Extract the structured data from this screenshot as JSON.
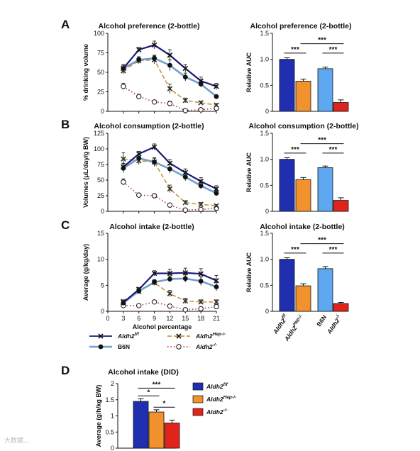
{
  "chart_data": [
    {
      "id": "A-line",
      "panel_letter": "A",
      "type": "line",
      "title": "Alcohol preference (2-bottle)",
      "ylabel": "% drinking volume",
      "xlabel": "",
      "x": [
        3,
        6,
        9,
        12,
        15,
        18,
        21
      ],
      "ylim": [
        0,
        100
      ],
      "yticks": [
        0,
        25,
        50,
        75,
        100
      ],
      "series": [
        {
          "key": "fl",
          "values": [
            55,
            79,
            85,
            72,
            55,
            39,
            32
          ],
          "err": [
            4,
            3,
            5,
            7,
            5,
            5,
            4
          ],
          "color": "#1a1a7a",
          "marker": "x",
          "dash": "none"
        },
        {
          "key": "b6n",
          "values": [
            55,
            66,
            68,
            59,
            44,
            35,
            19
          ],
          "err": [
            5,
            4,
            4,
            7,
            5,
            4,
            2
          ],
          "color": "#6fa0cc",
          "marker": "dot",
          "dash": "none"
        },
        {
          "key": "hep",
          "values": [
            52,
            65,
            66,
            29,
            14,
            11,
            8
          ],
          "err": [
            4,
            4,
            5,
            6,
            3,
            2,
            2
          ],
          "color": "#c89540",
          "marker": "x",
          "dash": "6,3"
        },
        {
          "key": "ko",
          "values": [
            32,
            19,
            12,
            10,
            1,
            2,
            4
          ],
          "err": [
            4,
            3,
            2,
            3,
            1,
            1,
            2
          ],
          "color": "#b23b3b",
          "marker": "circle",
          "dash": "1.5,3"
        }
      ]
    },
    {
      "id": "A-bar",
      "type": "bar",
      "title": "Alcohol preference (2-bottle)",
      "ylabel": "Relative AUC",
      "ylim": [
        0,
        1.5
      ],
      "yticks": [
        0,
        0.5,
        1.0,
        1.5
      ],
      "ytick_labels": [
        "0",
        "0.5",
        "1.0",
        "1.5"
      ],
      "values": [
        1.0,
        0.58,
        0.82,
        0.17
      ],
      "err": [
        0.03,
        0.04,
        0.03,
        0.05
      ],
      "colors": [
        "#1f2fb0",
        "#f2922e",
        "#5da8f0",
        "#e0241c"
      ],
      "brackets": [
        {
          "from": 0,
          "to": 1,
          "label": "***",
          "y": 1.12
        },
        {
          "from": 1,
          "to": 3,
          "label": "***",
          "y": 1.3
        },
        {
          "from": 2,
          "to": 3,
          "label": "***",
          "y": 1.12
        }
      ]
    },
    {
      "id": "B-line",
      "panel_letter": "B",
      "type": "line",
      "title": "Alcohol consumption (2-bottle)",
      "ylabel": "Volumes (μL/day/g BW)",
      "xlabel": "",
      "x": [
        3,
        6,
        9,
        12,
        15,
        18,
        21
      ],
      "ylim": [
        0,
        125
      ],
      "yticks": [
        0,
        25,
        50,
        75,
        100,
        125
      ],
      "series": [
        {
          "key": "fl",
          "values": [
            71,
            92,
            103,
            77,
            62,
            48,
            36
          ],
          "err": [
            6,
            4,
            5,
            6,
            6,
            6,
            5
          ],
          "color": "#1a1a7a",
          "marker": "x",
          "dash": "none"
        },
        {
          "key": "b6n",
          "values": [
            69,
            85,
            79,
            68,
            55,
            41,
            29
          ],
          "err": [
            7,
            6,
            6,
            7,
            6,
            5,
            4
          ],
          "color": "#6fa0cc",
          "marker": "dot",
          "dash": "none"
        },
        {
          "key": "hep",
          "values": [
            84,
            81,
            79,
            36,
            14,
            11,
            9
          ],
          "err": [
            10,
            6,
            7,
            6,
            3,
            3,
            2
          ],
          "color": "#c89540",
          "marker": "x",
          "dash": "6,3"
        },
        {
          "key": "ko",
          "values": [
            47,
            26,
            25,
            10,
            2,
            3,
            5
          ],
          "err": [
            5,
            3,
            3,
            2,
            1,
            1,
            2
          ],
          "color": "#b23b3b",
          "marker": "circle",
          "dash": "1.5,3"
        }
      ]
    },
    {
      "id": "B-bar",
      "type": "bar",
      "title": "Alcohol consumption (2-bottle)",
      "ylabel": "Relative AUC",
      "ylim": [
        0,
        1.5
      ],
      "yticks": [
        0,
        0.5,
        1.0,
        1.5
      ],
      "ytick_labels": [
        "0",
        "0.5",
        "1.0",
        "1.5"
      ],
      "values": [
        1.0,
        0.61,
        0.84,
        0.21
      ],
      "err": [
        0.03,
        0.04,
        0.03,
        0.05
      ],
      "colors": [
        "#1f2fb0",
        "#f2922e",
        "#5da8f0",
        "#e0241c"
      ],
      "brackets": [
        {
          "from": 0,
          "to": 1,
          "label": "***",
          "y": 1.12
        },
        {
          "from": 1,
          "to": 3,
          "label": "***",
          "y": 1.3
        },
        {
          "from": 2,
          "to": 3,
          "label": "***",
          "y": 1.12
        }
      ]
    },
    {
      "id": "C-line",
      "panel_letter": "C",
      "type": "line",
      "title": "Alcohol intake (2-bottle)",
      "ylabel": "Average (g/kg/day)",
      "xlabel": "Alcohol percentage",
      "x": [
        3,
        6,
        9,
        12,
        15,
        18,
        21
      ],
      "xlim": [
        0,
        21
      ],
      "xticks": [
        0,
        3,
        6,
        9,
        12,
        15,
        18,
        21
      ],
      "ylim": [
        0,
        15
      ],
      "yticks": [
        0,
        5,
        10,
        15
      ],
      "series": [
        {
          "key": "fl",
          "values": [
            1.7,
            4.2,
            7.3,
            7.3,
            7.4,
            7.2,
            5.9
          ],
          "err": [
            0.2,
            0.4,
            0.5,
            0.8,
            0.9,
            1.0,
            1.0
          ],
          "color": "#1a1a7a",
          "marker": "x",
          "dash": "none"
        },
        {
          "key": "b6n",
          "values": [
            1.6,
            3.9,
            5.6,
            6.2,
            6.3,
            5.8,
            4.7
          ],
          "err": [
            0.2,
            0.4,
            0.5,
            0.6,
            0.7,
            0.8,
            0.8
          ],
          "color": "#6fa0cc",
          "marker": "dot",
          "dash": "none"
        },
        {
          "key": "hep",
          "values": [
            1.9,
            3.8,
            5.5,
            3.4,
            2.0,
            1.8,
            1.8
          ],
          "err": [
            0.3,
            0.4,
            0.5,
            0.6,
            0.5,
            0.4,
            0.4
          ],
          "color": "#c89540",
          "marker": "x",
          "dash": "6,3"
        },
        {
          "key": "ko",
          "values": [
            1.1,
            1.1,
            1.8,
            1.0,
            0.3,
            0.5,
            0.9
          ],
          "err": [
            0.1,
            0.2,
            0.2,
            0.2,
            0.1,
            0.2,
            0.2
          ],
          "color": "#b23b3b",
          "marker": "circle",
          "dash": "1.5,3"
        }
      ]
    },
    {
      "id": "C-bar",
      "type": "bar",
      "title": "Alcohol intake (2-bottle)",
      "ylabel": "Relative AUC",
      "ylim": [
        0,
        1.5
      ],
      "yticks": [
        0,
        0.5,
        1.0,
        1.5
      ],
      "ytick_labels": [
        "0",
        "0.5",
        "1.0",
        "1.5"
      ],
      "values": [
        1.0,
        0.49,
        0.82,
        0.15
      ],
      "err": [
        0.03,
        0.04,
        0.04,
        0.02
      ],
      "colors": [
        "#1f2fb0",
        "#f2922e",
        "#5da8f0",
        "#e0241c"
      ],
      "category_labels": [
        {
          "base": "Aldh2",
          "sup": "f/f"
        },
        {
          "base": "Aldh2",
          "sup": "Hep-/-"
        },
        {
          "base": "B6N",
          "sup": ""
        },
        {
          "base": "Aldh2",
          "sup": "-/-"
        }
      ],
      "brackets": [
        {
          "from": 0,
          "to": 1,
          "label": "***",
          "y": 1.12
        },
        {
          "from": 1,
          "to": 3,
          "label": "***",
          "y": 1.3
        },
        {
          "from": 2,
          "to": 3,
          "label": "***",
          "y": 1.12
        }
      ]
    },
    {
      "id": "D-bar",
      "panel_letter": "D",
      "type": "bar",
      "title": "Alcohol intake (DID)",
      "ylabel": "Average (g/h/kg BW)",
      "ylim": [
        0,
        2
      ],
      "yticks": [
        0,
        0.5,
        1,
        1.5,
        2
      ],
      "ytick_labels": [
        "0",
        "0.5",
        "1",
        "1.5",
        "2"
      ],
      "values": [
        1.45,
        1.12,
        0.78
      ],
      "err": [
        0.08,
        0.07,
        0.09
      ],
      "colors": [
        "#1f2fb0",
        "#f2922e",
        "#e0241c"
      ],
      "brackets": [
        {
          "from": 0,
          "to": 1,
          "label": "*",
          "y": 1.62
        },
        {
          "from": 0,
          "to": 2,
          "label": "***",
          "y": 1.86
        },
        {
          "from": 1,
          "to": 2,
          "label": "*",
          "y": 1.27
        }
      ]
    }
  ],
  "legend_top": [
    {
      "key": "fl",
      "base": "Aldh2",
      "sup": "f/f"
    },
    {
      "key": "hep",
      "base": "Aldh2",
      "sup": "Hep-/-"
    },
    {
      "key": "b6n",
      "base": "B6N",
      "sup": ""
    },
    {
      "key": "ko",
      "base": "Aldh2",
      "sup": "-/-"
    }
  ],
  "legend_bottom": [
    {
      "base": "Aldh2",
      "sup": "f/f",
      "color": "#1f2fb0"
    },
    {
      "base": "Aldh2",
      "sup": "Hep-/-",
      "color": "#f2922e"
    },
    {
      "base": "Aldh2",
      "sup": "-/-",
      "color": "#e0241c"
    }
  ],
  "watermark": "大数据..."
}
